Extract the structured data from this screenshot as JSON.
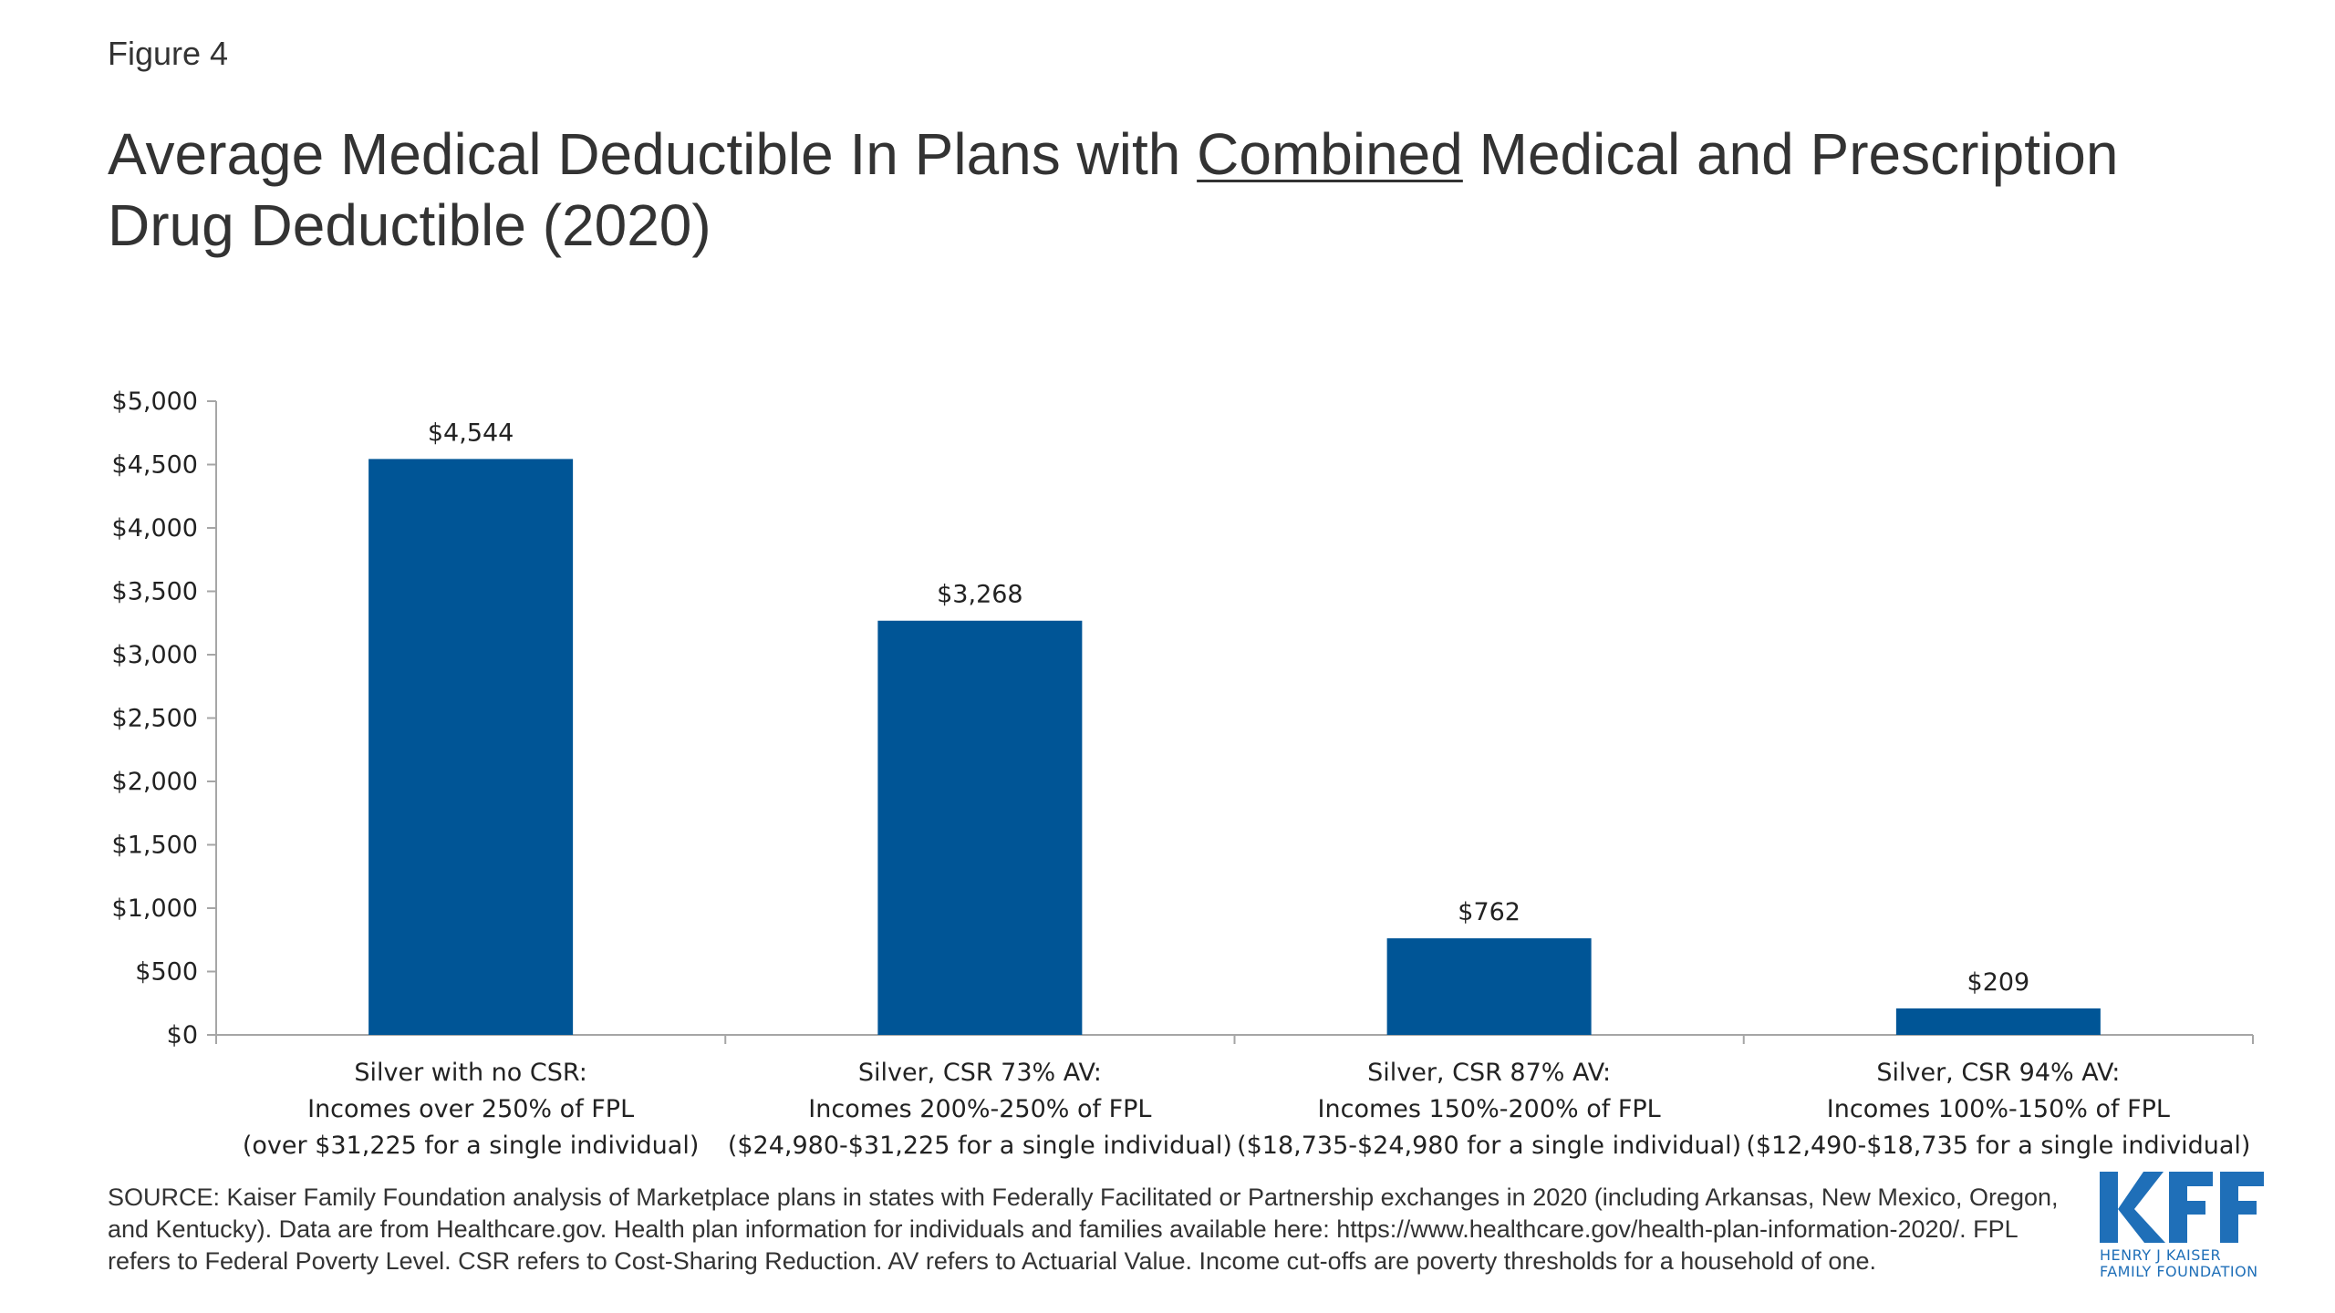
{
  "figure_label": "Figure 4",
  "title": {
    "part1": "Average Medical Deductible In Plans with ",
    "underlined": "Combined",
    "part2": " Medical and Prescription Drug Deductible (2020)"
  },
  "colors": {
    "bar": "#005596",
    "axis": "#a6a6a6",
    "text": "#333333",
    "logo": "#1f6fb8"
  },
  "chart_data": {
    "type": "bar",
    "categories": [
      [
        "Silver with no CSR:",
        "Incomes over 250% of FPL",
        "(over $31,225 for a single individual)"
      ],
      [
        "Silver, CSR 73% AV:",
        "Incomes 200%-250% of FPL",
        "($24,980-$31,225 for a single individual)"
      ],
      [
        "Silver, CSR 87% AV:",
        "Incomes 150%-200% of FPL",
        "($18,735-$24,980 for a single individual)"
      ],
      [
        "Silver, CSR 94% AV:",
        "Incomes 100%-150% of FPL",
        "($12,490-$18,735 for a single individual)"
      ]
    ],
    "values": [
      4544,
      3268,
      762,
      209
    ],
    "data_labels": [
      "$4,544",
      "$3,268",
      "$762",
      "$209"
    ],
    "ylim": [
      0,
      5000
    ],
    "yticks": [
      0,
      500,
      1000,
      1500,
      2000,
      2500,
      3000,
      3500,
      4000,
      4500,
      5000
    ],
    "ytick_labels": [
      "$0",
      "$500",
      "$1,000",
      "$1,500",
      "$2,000",
      "$2,500",
      "$3,000",
      "$3,500",
      "$4,000",
      "$4,500",
      "$5,000"
    ],
    "grid": false,
    "legend": "none"
  },
  "source": "SOURCE: Kaiser Family Foundation analysis of Marketplace plans in states with Federally Facilitated or Partnership exchanges in 2020 (including Arkansas, New Mexico, Oregon, and Kentucky). Data are from Healthcare.gov. Health plan information for individuals and families available here: https://www.healthcare.gov/health-plan-information-2020/. FPL refers to Federal Poverty Level. CSR refers to Cost-Sharing Reduction. AV refers to Actuarial Value. Income cut-offs are poverty thresholds for a household of one.",
  "logo": {
    "mark": "KFF",
    "line1": "HENRY J KAISER",
    "line2": "FAMILY FOUNDATION"
  }
}
